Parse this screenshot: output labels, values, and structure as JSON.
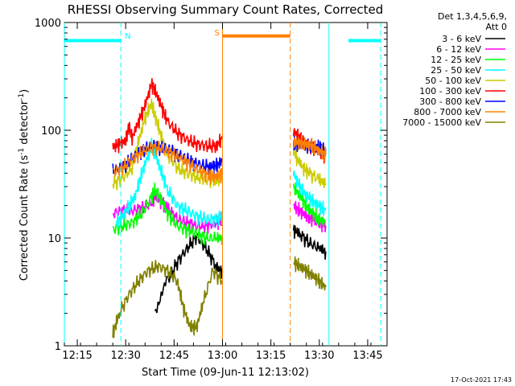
{
  "chart_data": {
    "type": "line",
    "title": "RHESSI Observing Summary Count Rates, Corrected",
    "xlabel": "Start Time (09-Jun-11 12:13:02)",
    "ylabel_main": "Corrected Count Rate (s",
    "ylabel_sup1": "-1",
    "ylabel_mid": " detector",
    "ylabel_sup2": "-1",
    "ylabel_end": ")",
    "yscale": "log",
    "xlim_min": [
      -2,
      98
    ],
    "ylim": [
      1,
      1000
    ],
    "x_ticks": [
      {
        "min": 2,
        "label": "12:15"
      },
      {
        "min": 17,
        "label": "12:30"
      },
      {
        "min": 32,
        "label": "12:45"
      },
      {
        "min": 47,
        "label": "13:00"
      },
      {
        "min": 62,
        "label": "13:15"
      },
      {
        "min": 77,
        "label": "13:30"
      },
      {
        "min": 92,
        "label": "13:45"
      }
    ],
    "y_ticks": [
      {
        "value": 1,
        "label": "1"
      },
      {
        "value": 10,
        "label": "10"
      },
      {
        "value": 100,
        "label": "100"
      },
      {
        "value": 1000,
        "label": "1000"
      }
    ],
    "legend_title_1": "Det 1,3,4,5,6,9,",
    "legend_title_2": "Att 0",
    "legend_position": "right",
    "timestamp": "17-Oct-2021 17:43",
    "series": [
      {
        "name": "3 - 6 keV",
        "color": "#000000",
        "segments": [
          [
            [
              26,
              2.2
            ],
            [
              30,
              4
            ],
            [
              33,
              6
            ],
            [
              36,
              8
            ],
            [
              39,
              10.5
            ],
            [
              42,
              8
            ],
            [
              45,
              5.5
            ],
            [
              47,
              4.8
            ]
          ],
          [
            [
              69,
              12
            ],
            [
              71,
              11
            ],
            [
              74,
              9
            ],
            [
              77,
              8
            ],
            [
              79,
              7.5
            ]
          ]
        ]
      },
      {
        "name": "6 - 12 keV",
        "color": "#ff00ff",
        "segments": [
          [
            [
              13,
              17
            ],
            [
              16,
              18
            ],
            [
              19,
              18
            ],
            [
              22,
              19
            ],
            [
              25,
              21
            ],
            [
              26,
              24
            ],
            [
              28,
              22
            ],
            [
              30,
              19
            ],
            [
              33,
              15
            ],
            [
              36,
              14
            ],
            [
              39,
              13
            ],
            [
              42,
              13
            ],
            [
              45,
              14
            ],
            [
              47,
              15
            ]
          ],
          [
            [
              69,
              20
            ],
            [
              71,
              18
            ],
            [
              73,
              16
            ],
            [
              75,
              15
            ],
            [
              77,
              14
            ],
            [
              79,
              13
            ]
          ]
        ]
      },
      {
        "name": "12 - 25 keV",
        "color": "#00ff00",
        "segments": [
          [
            [
              13,
              12
            ],
            [
              16,
              13
            ],
            [
              19,
              14
            ],
            [
              22,
              17
            ],
            [
              25,
              24
            ],
            [
              26,
              28
            ],
            [
              28,
              23
            ],
            [
              30,
              17
            ],
            [
              33,
              13
            ],
            [
              36,
              12
            ],
            [
              39,
              11
            ],
            [
              42,
              10
            ],
            [
              45,
              10
            ],
            [
              47,
              10
            ]
          ],
          [
            [
              69,
              30
            ],
            [
              71,
              25
            ],
            [
              73,
              20
            ],
            [
              75,
              17
            ],
            [
              77,
              15
            ],
            [
              79,
              14
            ]
          ]
        ]
      },
      {
        "name": "25 - 50 keV",
        "color": "#00ffff",
        "segments": [
          [
            [
              14,
              14
            ],
            [
              16,
              16
            ],
            [
              18,
              20
            ],
            [
              20,
              25
            ],
            [
              22,
              40
            ],
            [
              24,
              60
            ],
            [
              25,
              72
            ],
            [
              26,
              62
            ],
            [
              28,
              42
            ],
            [
              30,
              28
            ],
            [
              33,
              20
            ],
            [
              36,
              18
            ],
            [
              39,
              16
            ],
            [
              42,
              15
            ],
            [
              45,
              15
            ],
            [
              47,
              16
            ]
          ],
          [
            [
              69,
              40
            ],
            [
              71,
              30
            ],
            [
              73,
              25
            ],
            [
              75,
              22
            ],
            [
              77,
              20
            ],
            [
              79,
              18
            ]
          ]
        ]
      },
      {
        "name": "50 - 100 keV",
        "color": "#cccc00",
        "segments": [
          [
            [
              13,
              32
            ],
            [
              16,
              36
            ],
            [
              19,
              45
            ],
            [
              21,
              80
            ],
            [
              23,
              130
            ],
            [
              25,
              180
            ],
            [
              26,
              140
            ],
            [
              28,
              90
            ],
            [
              30,
              60
            ],
            [
              33,
              45
            ],
            [
              36,
              40
            ],
            [
              39,
              37
            ],
            [
              42,
              35
            ],
            [
              45,
              34
            ],
            [
              47,
              36
            ]
          ],
          [
            [
              69,
              70
            ],
            [
              70,
              55
            ],
            [
              72,
              45
            ],
            [
              74,
              40
            ],
            [
              77,
              35
            ],
            [
              79,
              32
            ]
          ]
        ]
      },
      {
        "name": "100 - 300 keV",
        "color": "#ff0000",
        "segments": [
          [
            [
              13,
              70
            ],
            [
              15,
              75
            ],
            [
              17,
              80
            ],
            [
              18,
              110
            ],
            [
              19,
              85
            ],
            [
              21,
              120
            ],
            [
              23,
              170
            ],
            [
              25,
              270
            ],
            [
              26,
              240
            ],
            [
              28,
              170
            ],
            [
              30,
              120
            ],
            [
              33,
              95
            ],
            [
              36,
              82
            ],
            [
              39,
              75
            ],
            [
              42,
              72
            ],
            [
              45,
              72
            ],
            [
              47,
              85
            ]
          ],
          [
            [
              69,
              100
            ],
            [
              71,
              85
            ],
            [
              73,
              75
            ],
            [
              75,
              70
            ],
            [
              77,
              65
            ],
            [
              79,
              58
            ]
          ]
        ]
      },
      {
        "name": "300 - 800 keV",
        "color": "#0000ff",
        "segments": [
          [
            [
              13,
              42
            ],
            [
              16,
              46
            ],
            [
              19,
              55
            ],
            [
              22,
              65
            ],
            [
              25,
              72
            ],
            [
              28,
              70
            ],
            [
              31,
              65
            ],
            [
              34,
              58
            ],
            [
              37,
              52
            ],
            [
              40,
              48
            ],
            [
              43,
              46
            ],
            [
              45,
              47
            ],
            [
              47,
              52
            ]
          ],
          [
            [
              69,
              75
            ],
            [
              71,
              75
            ],
            [
              73,
              73
            ],
            [
              75,
              70
            ],
            [
              77,
              70
            ],
            [
              78,
              68
            ],
            [
              79,
              60
            ]
          ]
        ]
      },
      {
        "name": "800 - 7000 keV",
        "color": "#ff8000",
        "segments": [
          [
            [
              13,
              41
            ],
            [
              16,
              45
            ],
            [
              19,
              54
            ],
            [
              22,
              63
            ],
            [
              25,
              70
            ],
            [
              28,
              68
            ],
            [
              31,
              62
            ],
            [
              34,
              55
            ],
            [
              37,
              48
            ],
            [
              40,
              42
            ],
            [
              43,
              38
            ],
            [
              45,
              37
            ],
            [
              47,
              40
            ]
          ],
          [
            [
              69,
              78
            ],
            [
              71,
              77
            ],
            [
              73,
              75
            ],
            [
              75,
              72
            ],
            [
              77,
              65
            ],
            [
              79,
              60
            ]
          ]
        ]
      },
      {
        "name": "7000 - 15000 keV",
        "color": "#808000",
        "segments": [
          [
            [
              13,
              1.3
            ],
            [
              15,
              2
            ],
            [
              18,
              3
            ],
            [
              21,
              4
            ],
            [
              24,
              5
            ],
            [
              27,
              5.5
            ],
            [
              30,
              5
            ],
            [
              33,
              4
            ],
            [
              35,
              2.2
            ],
            [
              37,
              1.5
            ],
            [
              39,
              1.5
            ],
            [
              41,
              2.5
            ],
            [
              44,
              5
            ],
            [
              47,
              4
            ]
          ],
          [
            [
              69,
              6
            ],
            [
              71,
              5.5
            ],
            [
              73,
              5
            ],
            [
              75,
              4.5
            ],
            [
              77,
              4
            ],
            [
              79,
              3.5
            ]
          ]
        ]
      }
    ],
    "annotations": {
      "n_label": "N",
      "s_label": "S",
      "night_bars": [
        [
          -2,
          15.5
        ],
        [
          86,
          96
        ]
      ],
      "saa_bar": [
        47,
        68
      ],
      "bar_level": 680,
      "saa_level": 750,
      "cyan_solid": [
        -2,
        80
      ],
      "cyan_dashed": [
        15.5,
        96
      ],
      "orange_solid": [
        47
      ],
      "orange_dashed": [
        68
      ]
    }
  }
}
